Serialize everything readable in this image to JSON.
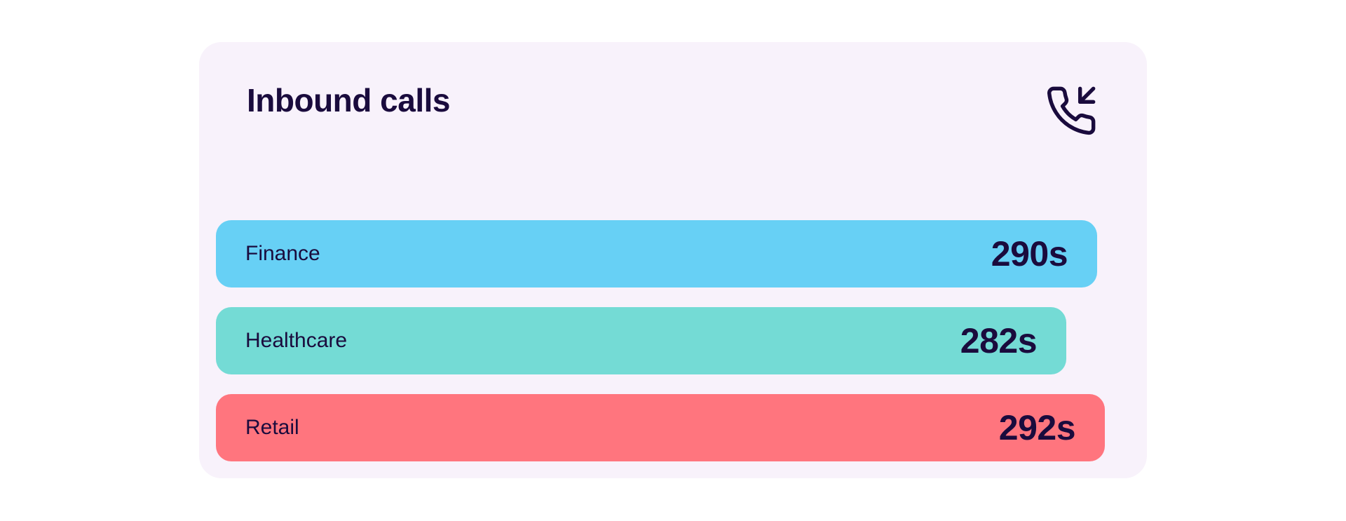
{
  "card": {
    "title": "Inbound calls",
    "icon": "phone-incoming-icon"
  },
  "colors": {
    "card_background": "#f8f2fb",
    "text": "#1a0b3d",
    "finance": "#67d0f5",
    "healthcare": "#74dbd5",
    "retail": "#ff757e"
  },
  "chart_data": {
    "type": "bar",
    "orientation": "horizontal",
    "title": "Inbound calls",
    "categories": [
      "Finance",
      "Healthcare",
      "Retail"
    ],
    "values": [
      290,
      282,
      292
    ],
    "value_labels": [
      "290s",
      "282s",
      "292s"
    ],
    "unit": "s",
    "colors": [
      "#67d0f5",
      "#74dbd5",
      "#ff757e"
    ],
    "xlim": [
      0,
      292
    ],
    "grid": false,
    "legend": "none"
  }
}
